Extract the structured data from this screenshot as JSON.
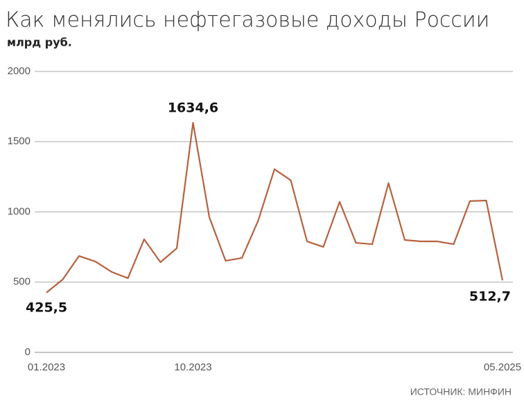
{
  "chart_data": {
    "type": "line",
    "title": "Как менялись нефтегазовые доходы России",
    "subtitle": "млрд руб.",
    "source": "ИСТОЧНИК: МИНФИН",
    "categories": [
      "01.2023",
      null,
      null,
      null,
      null,
      null,
      null,
      null,
      null,
      "10.2023",
      null,
      null,
      null,
      null,
      null,
      null,
      null,
      null,
      null,
      null,
      null,
      null,
      null,
      null,
      null,
      null,
      null,
      null,
      "05.2025"
    ],
    "values": [
      425.5,
      519,
      686,
      647,
      573,
      528,
      805,
      642,
      741,
      1634.6,
      963,
      652,
      672,
      938,
      1304,
      1225,
      790,
      751,
      1072,
      780,
      770,
      1205,
      800,
      790,
      790,
      770,
      1077,
      1081,
      512.7
    ],
    "value_labels": [
      "425,5",
      null,
      null,
      null,
      null,
      null,
      null,
      null,
      null,
      "1634,6",
      null,
      null,
      null,
      null,
      null,
      null,
      null,
      null,
      null,
      null,
      null,
      null,
      null,
      null,
      null,
      null,
      null,
      null,
      "512,7"
    ],
    "color": "#b5613e",
    "ylim": [
      0,
      2000
    ],
    "yticks": [
      0,
      500,
      1000,
      1500,
      2000
    ],
    "grid": true
  }
}
